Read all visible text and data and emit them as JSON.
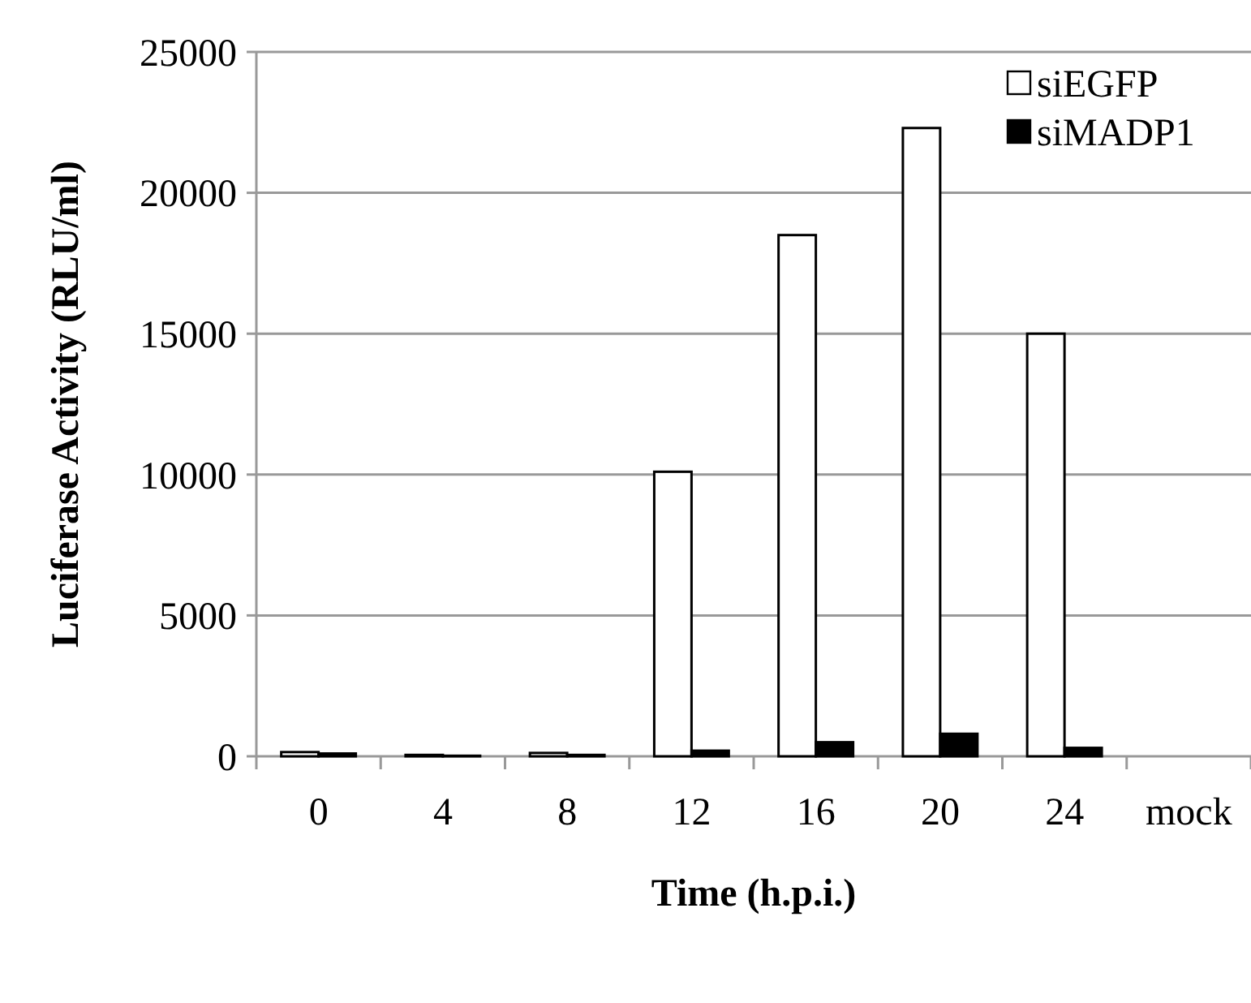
{
  "chart_data": {
    "type": "bar",
    "xlabel": "Time (h.p.i.)",
    "ylabel": "Luciferase Activity (RLU/ml)",
    "categories": [
      "0",
      "4",
      "8",
      "12",
      "16",
      "20",
      "24",
      "mock"
    ],
    "series": [
      {
        "name": "siEGFP",
        "color": "#ffffff",
        "values": [
          150,
          50,
          120,
          10100,
          18500,
          22300,
          15000,
          0
        ]
      },
      {
        "name": "siMADP1",
        "color": "#000000",
        "values": [
          100,
          20,
          50,
          200,
          500,
          800,
          300,
          0
        ]
      }
    ],
    "ylim": [
      0,
      25000
    ],
    "yticks": [
      0,
      5000,
      10000,
      15000,
      20000,
      25000
    ],
    "grid": "y",
    "legend": "top right"
  }
}
